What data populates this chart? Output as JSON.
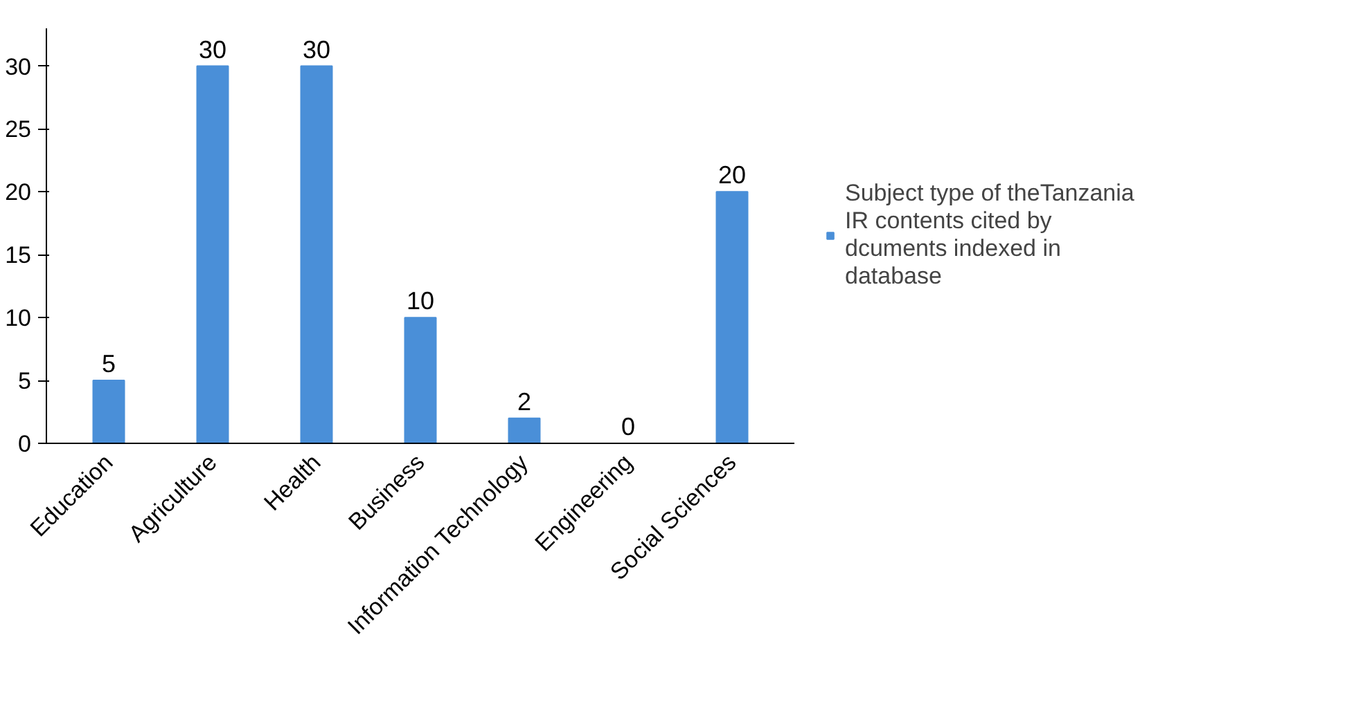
{
  "chart_data": {
    "type": "bar",
    "categories": [
      "Education",
      "Agriculture",
      "Health",
      "Business",
      "Information Technology",
      "Engineering",
      "Social Sciences"
    ],
    "series": [
      {
        "name": "Subject type of theTanzania IR contents cited by dcuments indexed in database",
        "color": "#4a8fd8",
        "values": [
          5,
          30,
          30,
          10,
          2,
          0,
          20
        ]
      }
    ],
    "ylim": [
      0,
      33
    ],
    "yticks": [
      0,
      5,
      10,
      15,
      20,
      25,
      30
    ],
    "grid": false,
    "legend": "right",
    "data_labels": true
  }
}
